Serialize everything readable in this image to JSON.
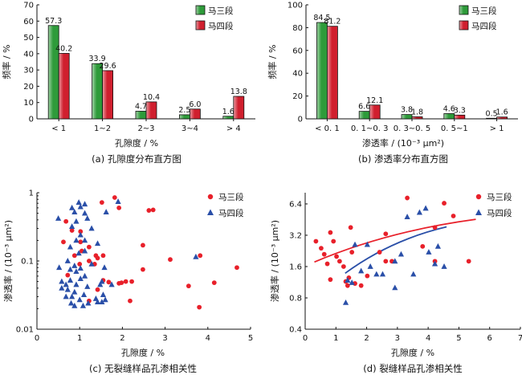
{
  "chart_data": [
    {
      "id": "a",
      "type": "bar",
      "caption": "(a) 孔隙度分布直方图",
      "xlabel": "孔隙度 / %",
      "ylabel": "频率 / %",
      "categories": [
        "< 1",
        "1~2",
        "2~3",
        "3~4",
        "> 4"
      ],
      "series": [
        {
          "name": "马三段",
          "color": "#2e9b3a",
          "values": [
            57.3,
            33.9,
            4.7,
            2.5,
            1.6
          ],
          "labels": [
            "57.3",
            "33.9",
            "4.7",
            "2.5",
            "1.6"
          ]
        },
        {
          "name": "马四段",
          "color": "#d01f2e",
          "values": [
            40.2,
            29.6,
            10.4,
            6.0,
            13.8
          ],
          "labels": [
            "40.2",
            "29.6",
            "10.4",
            "6.0",
            "13.8"
          ]
        }
      ],
      "ylim": [
        0,
        70
      ],
      "yticks": [
        0,
        10,
        20,
        30,
        40,
        50,
        60,
        70
      ],
      "legend": "top-right"
    },
    {
      "id": "b",
      "type": "bar",
      "caption": "(b) 渗透率分布直方图",
      "xlabel": "渗透率 / (10⁻³ μm²)",
      "ylabel": "频率 / %",
      "categories": [
        "< 0. 1",
        "0. 1~0. 3",
        "0. 3~0. 5",
        "0. 5~1",
        "> 1"
      ],
      "series": [
        {
          "name": "马三段",
          "color": "#2e9b3a",
          "values": [
            84.5,
            6.6,
            3.8,
            4.6,
            0.5
          ],
          "labels": [
            "84.5",
            "6.6",
            "3.8",
            "4.6",
            "0.5"
          ]
        },
        {
          "name": "马四段",
          "color": "#d01f2e",
          "values": [
            81.2,
            12.1,
            1.8,
            3.3,
            1.6
          ],
          "labels": [
            "81.2",
            "12.1",
            "1.8",
            "3.3",
            "1.6"
          ]
        }
      ],
      "ylim": [
        0,
        100
      ],
      "yticks": [
        0,
        20,
        40,
        60,
        80,
        100
      ],
      "legend": "top-right"
    },
    {
      "id": "c",
      "type": "scatter",
      "caption": "(c) 无裂缝样品孔渗相关性",
      "xlabel": "孔隙度 / %",
      "ylabel": "渗透率 / (10⁻³ μm²)",
      "xlim": [
        0,
        5
      ],
      "xticks": [
        0,
        1,
        2,
        3,
        4,
        5
      ],
      "ylim": [
        0.01,
        1
      ],
      "ylog": true,
      "yticks": [
        0.01,
        0.1,
        1
      ],
      "ytick_labels": [
        "0.01",
        "0.1",
        "1"
      ],
      "legend": "top-right",
      "series": [
        {
          "name": "马三段",
          "color": "#e8202a",
          "marker": "circle",
          "points": [
            [
              1.52,
              0.72
            ],
            [
              1.82,
              0.85
            ],
            [
              1.92,
              0.6
            ],
            [
              0.68,
              0.38
            ],
            [
              0.82,
              0.28
            ],
            [
              1.02,
              0.27
            ],
            [
              0.62,
              0.19
            ],
            [
              1.02,
              0.19
            ],
            [
              1.22,
              0.16
            ],
            [
              1.05,
              0.14
            ],
            [
              1.55,
              0.12
            ],
            [
              0.88,
              0.12
            ],
            [
              1.38,
              0.12
            ],
            [
              1.42,
              0.11
            ],
            [
              1.22,
              0.1
            ],
            [
              1.35,
              0.09
            ],
            [
              1.0,
              0.09
            ],
            [
              2.48,
              0.17
            ],
            [
              2.62,
              0.55
            ],
            [
              2.72,
              0.56
            ],
            [
              2.48,
              0.075
            ],
            [
              3.12,
              0.105
            ],
            [
              3.82,
              0.12
            ],
            [
              4.68,
              0.08
            ],
            [
              0.72,
              0.062
            ],
            [
              1.55,
              0.052
            ],
            [
              2.08,
              0.05
            ],
            [
              1.98,
              0.048
            ],
            [
              1.68,
              0.049
            ],
            [
              1.92,
              0.047
            ],
            [
              2.22,
              0.05
            ],
            [
              1.42,
              0.038
            ],
            [
              2.18,
              0.026
            ],
            [
              3.55,
              0.043
            ],
            [
              4.15,
              0.048
            ],
            [
              3.8,
              0.021
            ],
            [
              1.22,
              0.026
            ]
          ]
        },
        {
          "name": "马四段",
          "color": "#2a4fa8",
          "marker": "triangle",
          "points": [
            [
              0.5,
              0.42
            ],
            [
              0.82,
              0.6
            ],
            [
              0.88,
              0.52
            ],
            [
              0.98,
              0.72
            ],
            [
              1.02,
              0.62
            ],
            [
              1.12,
              0.68
            ],
            [
              1.18,
              0.42
            ],
            [
              1.12,
              0.5
            ],
            [
              1.9,
              0.74
            ],
            [
              1.62,
              0.52
            ],
            [
              0.92,
              0.38
            ],
            [
              1.28,
              0.3
            ],
            [
              0.82,
              0.32
            ],
            [
              0.78,
              0.16
            ],
            [
              0.92,
              0.2
            ],
            [
              1.02,
              0.24
            ],
            [
              1.12,
              0.2
            ],
            [
              0.98,
              0.13
            ],
            [
              1.42,
              0.18
            ],
            [
              1.12,
              0.14
            ],
            [
              0.52,
              0.08
            ],
            [
              0.72,
              0.1
            ],
            [
              0.78,
              0.075
            ],
            [
              0.88,
              0.085
            ],
            [
              0.92,
              0.07
            ],
            [
              1.28,
              0.09
            ],
            [
              1.12,
              0.06
            ],
            [
              1.58,
              0.08
            ],
            [
              0.58,
              0.05
            ],
            [
              0.68,
              0.045
            ],
            [
              0.78,
              0.052
            ],
            [
              0.92,
              0.045
            ],
            [
              1.02,
              0.055
            ],
            [
              1.18,
              0.042
            ],
            [
              1.48,
              0.045
            ],
            [
              1.52,
              0.05
            ],
            [
              0.58,
              0.04
            ],
            [
              0.72,
              0.038
            ],
            [
              0.88,
              0.035
            ],
            [
              1.1,
              0.032
            ],
            [
              0.68,
              0.03
            ],
            [
              0.82,
              0.03
            ],
            [
              1.0,
              0.027
            ],
            [
              1.38,
              0.028
            ],
            [
              1.52,
              0.025
            ],
            [
              0.8,
              0.024
            ],
            [
              0.88,
              0.022
            ],
            [
              1.08,
              0.022
            ],
            [
              1.2,
              0.024
            ],
            [
              1.42,
              0.025
            ],
            [
              1.6,
              0.027
            ],
            [
              1.55,
              0.032
            ],
            [
              1.75,
              0.045
            ],
            [
              3.72,
              0.115
            ],
            [
              1.02,
              0.078
            ]
          ]
        }
      ]
    },
    {
      "id": "d",
      "type": "scatter",
      "caption": "(d) 裂缝样品孔渗相关性",
      "xlabel": "孔隙度 / %",
      "ylabel": "渗透率 / (10⁻³ μm²)",
      "xlim": [
        0,
        7
      ],
      "xticks": [
        0,
        1,
        2,
        3,
        4,
        5,
        6,
        7
      ],
      "ylim": [
        0.4,
        8.2
      ],
      "ylog": true,
      "yticks": [
        0.4,
        0.8,
        1.6,
        3.2,
        6.4
      ],
      "ytick_labels": [
        "0.4",
        "0.8",
        "1.6",
        "3.2",
        "6.4"
      ],
      "legend": "top-right",
      "series": [
        {
          "name": "马三段",
          "color": "#e8202a",
          "marker": "circle",
          "points": [
            [
              0.35,
              2.8
            ],
            [
              0.52,
              2.4
            ],
            [
              0.62,
              2.1
            ],
            [
              0.72,
              1.7
            ],
            [
              0.82,
              3.4
            ],
            [
              0.92,
              2.8
            ],
            [
              0.82,
              1.2
            ],
            [
              1.02,
              2.0
            ],
            [
              1.12,
              1.8
            ],
            [
              1.25,
              1.6
            ],
            [
              1.32,
              1.15
            ],
            [
              1.42,
              1.25
            ],
            [
              1.48,
              3.8
            ],
            [
              1.52,
              2.2
            ],
            [
              1.38,
              1.05
            ],
            [
              1.62,
              1.1
            ],
            [
              1.82,
              1.05
            ],
            [
              2.02,
              1.3
            ],
            [
              2.42,
              2.2
            ],
            [
              2.62,
              1.8
            ],
            [
              2.82,
              1.8
            ],
            [
              2.62,
              3.3
            ],
            [
              3.32,
              7.3
            ],
            [
              3.82,
              2.5
            ],
            [
              4.22,
              1.8
            ],
            [
              4.22,
              3.8
            ],
            [
              4.52,
              6.5
            ],
            [
              4.82,
              4.9
            ],
            [
              5.32,
              1.8
            ]
          ]
        },
        {
          "name": "马四段",
          "color": "#2a4fa8",
          "marker": "triangle",
          "points": [
            [
              1.32,
              0.72
            ],
            [
              1.38,
              1.18
            ],
            [
              1.52,
              1.12
            ],
            [
              1.62,
              2.6
            ],
            [
              1.82,
              1.45
            ],
            [
              2.02,
              2.6
            ],
            [
              2.12,
              1.6
            ],
            [
              2.32,
              1.35
            ],
            [
              2.52,
              1.35
            ],
            [
              2.92,
              1.0
            ],
            [
              2.92,
              1.8
            ],
            [
              3.12,
              2.1
            ],
            [
              3.32,
              4.8
            ],
            [
              3.52,
              1.35
            ],
            [
              3.72,
              5.3
            ],
            [
              3.92,
              5.8
            ],
            [
              4.02,
              2.2
            ],
            [
              4.22,
              1.7
            ],
            [
              4.32,
              2.5
            ],
            [
              4.52,
              1.6
            ]
          ]
        }
      ],
      "fits": [
        {
          "name": "马三段",
          "color": "#e8202a",
          "x_from": 0.3,
          "x_to": 5.55,
          "y_from": 1.77,
          "y_to": 4.55
        },
        {
          "name": "马四段",
          "color": "#2a4fa8",
          "x_from": 1.3,
          "x_to": 4.6,
          "y_from": 1.38,
          "y_to": 3.85
        }
      ]
    }
  ]
}
